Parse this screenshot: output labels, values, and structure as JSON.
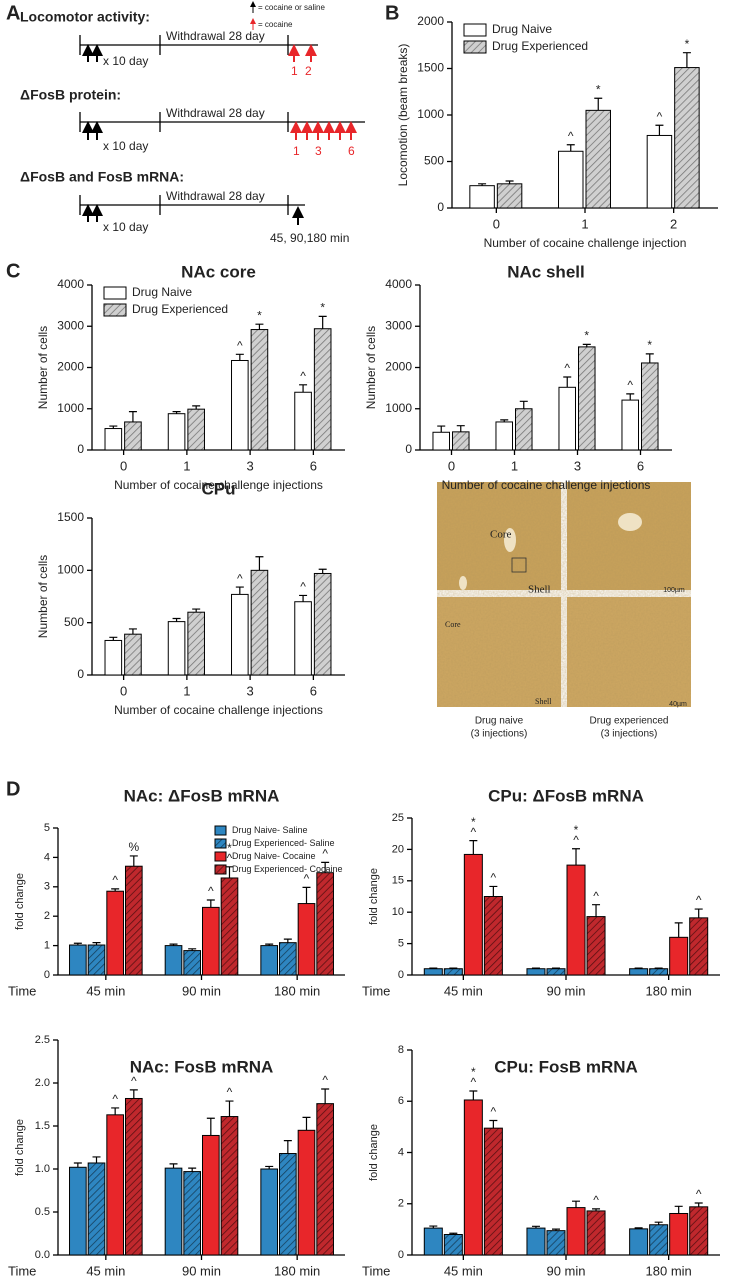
{
  "panels": [
    "A",
    "B",
    "C",
    "D"
  ],
  "protocol": {
    "legend": [
      "= cocaine or saline",
      "= cocaine"
    ],
    "rows": [
      {
        "title": "Locomotor activity:",
        "repeat": "x 10 day",
        "withdrawal": "Withdrawal 28 day",
        "challenges": [
          "1",
          "2"
        ]
      },
      {
        "title": "ΔFosB protein:",
        "repeat": "x 10 day",
        "withdrawal": "Withdrawal 28 day",
        "challenges": [
          "1",
          "3",
          "6"
        ]
      },
      {
        "title": "ΔFosB and FosB mRNA:",
        "repeat": "x 10 day",
        "withdrawal": "Withdrawal 28 day",
        "timepoints": "45, 90,180 min"
      }
    ]
  },
  "micrographs": {
    "labels": [
      "Core",
      "Shell",
      "100µm",
      "Core",
      "Shell",
      "40µm"
    ],
    "captions": [
      [
        "Drug naive",
        "(3 injections)"
      ],
      [
        "Drug experienced",
        "(3 injections)"
      ]
    ]
  },
  "chart_data": [
    {
      "type": "bar",
      "x_label": "Number of cocaine challenge injection",
      "y_label": "Locomotion (beam breaks)",
      "categories": [
        "0",
        "1",
        "2"
      ],
      "ylim": [
        0,
        2000
      ],
      "yticks": [
        0,
        500,
        1000,
        1500,
        2000
      ],
      "legend": "upper left",
      "series": [
        {
          "name": "Drug Naive",
          "color": "#ffffff",
          "values": [
            240,
            610,
            780
          ],
          "errors": [
            20,
            70,
            110
          ],
          "markers": [
            null,
            [
              "^"
            ],
            [
              "^"
            ]
          ]
        },
        {
          "name": "Drug Experienced",
          "color": "#d0d0d0",
          "hatch": "#777777",
          "values": [
            260,
            1050,
            1510
          ],
          "errors": [
            30,
            130,
            160
          ],
          "markers": [
            null,
            [
              "*"
            ],
            [
              "*"
            ]
          ]
        }
      ]
    },
    {
      "type": "bar",
      "title": "NAc core",
      "x_label": "Number of cocaine challenge injections",
      "y_label": "Number of cells",
      "categories": [
        "0",
        "1",
        "3",
        "6"
      ],
      "ylim": [
        0,
        4000
      ],
      "yticks": [
        0,
        1000,
        2000,
        3000,
        4000
      ],
      "legend": "upper left",
      "series": [
        {
          "name": "Drug Naive",
          "color": "#ffffff",
          "values": [
            520,
            880,
            2170,
            1400
          ],
          "errors": [
            60,
            50,
            150,
            180
          ],
          "markers": [
            null,
            null,
            [
              "^"
            ],
            [
              "^"
            ]
          ]
        },
        {
          "name": "Drug Experienced",
          "color": "#d0d0d0",
          "hatch": "#777777",
          "values": [
            680,
            990,
            2920,
            2940
          ],
          "errors": [
            250,
            80,
            130,
            300
          ],
          "markers": [
            null,
            null,
            [
              "*"
            ],
            [
              "*"
            ]
          ]
        }
      ]
    },
    {
      "type": "bar",
      "title": "NAc shell",
      "x_label": "Number of cocaine challenge injections",
      "y_label": "Number of cells",
      "categories": [
        "0",
        "1",
        "3",
        "6"
      ],
      "ylim": [
        0,
        4000
      ],
      "yticks": [
        0,
        1000,
        2000,
        3000,
        4000
      ],
      "series": [
        {
          "color": "#ffffff",
          "values": [
            430,
            680,
            1520,
            1210
          ],
          "errors": [
            150,
            50,
            250,
            150
          ],
          "markers": [
            null,
            null,
            [
              "^"
            ],
            [
              "^"
            ]
          ]
        },
        {
          "color": "#d0d0d0",
          "hatch": "#777777",
          "values": [
            440,
            1000,
            2500,
            2110
          ],
          "errors": [
            150,
            180,
            60,
            220
          ],
          "markers": [
            null,
            null,
            [
              "*"
            ],
            [
              "*"
            ]
          ]
        }
      ]
    },
    {
      "type": "bar",
      "title": "CPu",
      "x_label": "Number of cocaine challenge injections",
      "y_label": "Number of cells",
      "categories": [
        "0",
        "1",
        "3",
        "6"
      ],
      "ylim": [
        0,
        1500
      ],
      "yticks": [
        0,
        500,
        1000,
        1500
      ],
      "series": [
        {
          "color": "#ffffff",
          "values": [
            330,
            510,
            770,
            700
          ],
          "errors": [
            30,
            30,
            70,
            60
          ],
          "markers": [
            null,
            null,
            [
              "^"
            ],
            [
              "^"
            ]
          ]
        },
        {
          "color": "#d0d0d0",
          "hatch": "#777777",
          "values": [
            390,
            600,
            1000,
            970
          ],
          "errors": [
            50,
            30,
            130,
            40
          ],
          "markers": [
            null,
            null,
            null,
            null
          ]
        }
      ]
    },
    {
      "type": "bar",
      "title": "NAc: ΔFosB mRNA",
      "x_label": "Time",
      "x_label_loc": "left",
      "y_label": "fold change",
      "categories": [
        "45 min",
        "90 min",
        "180 min"
      ],
      "ylim": [
        0,
        5
      ],
      "yticks": [
        0,
        1,
        2,
        3,
        4,
        5
      ],
      "legend": "upper right",
      "series": [
        {
          "name": "Drug Naive- Saline",
          "color": "#2e86c1",
          "values": [
            1.02,
            1.0,
            1.0
          ],
          "errors": [
            0.06,
            0.05,
            0.05
          ],
          "markers": [
            null,
            null,
            null
          ]
        },
        {
          "name": "Drug Experienced- Saline",
          "color": "#2e86c1",
          "hatch": "#163f5c",
          "values": [
            1.02,
            0.83,
            1.1
          ],
          "errors": [
            0.08,
            0.06,
            0.12
          ],
          "markers": [
            null,
            null,
            null
          ]
        },
        {
          "name": "Drug Naive- Cocaine",
          "color": "#e8262a",
          "values": [
            2.85,
            2.3,
            2.43
          ],
          "errors": [
            0.08,
            0.25,
            0.55
          ],
          "markers": [
            [
              "^"
            ],
            [
              "^"
            ],
            [
              "^"
            ]
          ]
        },
        {
          "name": "Drug Experienced- Cocaine",
          "color": "#c0282d",
          "hatch": "#5a1012",
          "values": [
            3.7,
            3.3,
            3.48
          ],
          "errors": [
            0.35,
            0.38,
            0.35
          ],
          "markers": [
            [
              "%"
            ],
            [
              "*",
              "^"
            ],
            [
              "^"
            ]
          ]
        }
      ]
    },
    {
      "type": "bar",
      "title": "CPu: ΔFosB mRNA",
      "x_label": "Time",
      "x_label_loc": "left",
      "y_label": "fold change",
      "categories": [
        "45 min",
        "90 min",
        "180 min"
      ],
      "ylim": [
        0,
        25
      ],
      "yticks": [
        0,
        5,
        10,
        15,
        20,
        25
      ],
      "series": [
        {
          "color": "#2e86c1",
          "values": [
            1,
            1,
            1
          ],
          "errors": [
            0.1,
            0.1,
            0.1
          ],
          "markers": [
            null,
            null,
            null
          ]
        },
        {
          "color": "#2e86c1",
          "hatch": "#163f5c",
          "values": [
            1,
            1,
            1
          ],
          "errors": [
            0.1,
            0.1,
            0.1
          ],
          "markers": [
            null,
            null,
            null
          ]
        },
        {
          "color": "#e8262a",
          "values": [
            19.2,
            17.5,
            6
          ],
          "errors": [
            2.2,
            2.6,
            2.3
          ],
          "markers": [
            [
              "*",
              "^"
            ],
            [
              "*",
              "^"
            ],
            null
          ]
        },
        {
          "color": "#c0282d",
          "hatch": "#5a1012",
          "values": [
            12.5,
            9.3,
            9.1
          ],
          "errors": [
            1.6,
            1.9,
            1.4
          ],
          "markers": [
            [
              "^"
            ],
            [
              "^"
            ],
            [
              "^"
            ]
          ]
        }
      ]
    },
    {
      "type": "bar",
      "title": "NAc: FosB mRNA",
      "x_label": "Time",
      "x_label_loc": "left",
      "y_label": "fold change",
      "categories": [
        "45 min",
        "90 min",
        "180 min"
      ],
      "ylim": [
        0,
        2.5
      ],
      "yticks": [
        {
          "value": 0,
          "label": "0.0"
        },
        0.5,
        {
          "value": 1,
          "label": "1.0"
        },
        1.5,
        {
          "value": 2,
          "label": "2.0"
        },
        2.5
      ],
      "series": [
        {
          "color": "#2e86c1",
          "values": [
            1.02,
            1.01,
            1.0
          ],
          "errors": [
            0.05,
            0.05,
            0.03
          ],
          "markers": [
            null,
            null,
            null
          ]
        },
        {
          "color": "#2e86c1",
          "hatch": "#163f5c",
          "values": [
            1.07,
            0.97,
            1.18
          ],
          "errors": [
            0.07,
            0.04,
            0.15
          ],
          "markers": [
            null,
            null,
            null
          ]
        },
        {
          "color": "#e8262a",
          "values": [
            1.63,
            1.39,
            1.45
          ],
          "errors": [
            0.08,
            0.2,
            0.15
          ],
          "markers": [
            [
              "^"
            ],
            null,
            null
          ]
        },
        {
          "color": "#c0282d",
          "hatch": "#5a1012",
          "values": [
            1.82,
            1.61,
            1.76
          ],
          "errors": [
            0.1,
            0.18,
            0.17
          ],
          "markers": [
            [
              "^"
            ],
            [
              "^"
            ],
            [
              "^"
            ]
          ]
        }
      ]
    },
    {
      "type": "bar",
      "title": "CPu: FosB mRNA",
      "x_label": "Time",
      "x_label_loc": "left",
      "y_label": "fold change",
      "categories": [
        "45 min",
        "90 min",
        "180 min"
      ],
      "ylim": [
        0,
        8
      ],
      "yticks": [
        0,
        2,
        4,
        6,
        8
      ],
      "series": [
        {
          "color": "#2e86c1",
          "values": [
            1.05,
            1.05,
            1.02
          ],
          "errors": [
            0.08,
            0.07,
            0.04
          ],
          "markers": [
            null,
            null,
            null
          ]
        },
        {
          "color": "#2e86c1",
          "hatch": "#163f5c",
          "values": [
            0.8,
            0.95,
            1.18
          ],
          "errors": [
            0.05,
            0.06,
            0.1
          ],
          "markers": [
            null,
            null,
            null
          ]
        },
        {
          "color": "#e8262a",
          "values": [
            6.05,
            1.85,
            1.62
          ],
          "errors": [
            0.35,
            0.25,
            0.28
          ],
          "markers": [
            [
              "*",
              "^"
            ],
            null,
            null
          ]
        },
        {
          "color": "#c0282d",
          "hatch": "#5a1012",
          "values": [
            4.95,
            1.72,
            1.88
          ],
          "errors": [
            0.3,
            0.08,
            0.15
          ],
          "markers": [
            [
              "^"
            ],
            [
              "^"
            ],
            [
              "^"
            ]
          ]
        }
      ]
    }
  ]
}
